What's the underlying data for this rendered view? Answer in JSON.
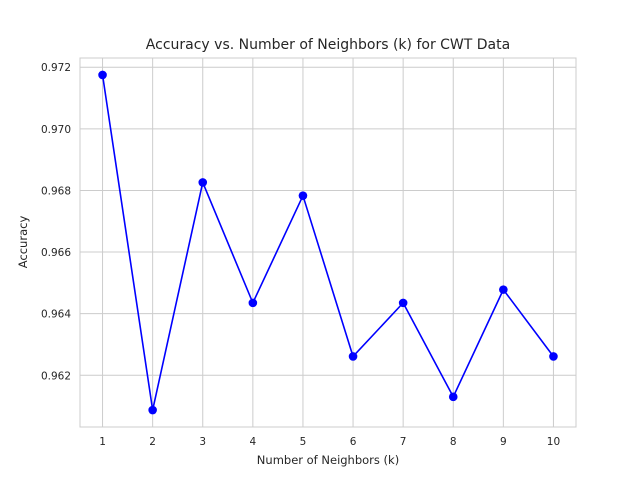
{
  "chart_data": {
    "type": "line",
    "title": "Accuracy vs. Number of Neighbors (k) for CWT Data",
    "xlabel": "Number of Neighbors (k)",
    "ylabel": "Accuracy",
    "x": [
      1,
      2,
      3,
      4,
      5,
      6,
      7,
      8,
      9,
      10
    ],
    "series": [
      {
        "values": [
          0.97175,
          0.96087,
          0.96826,
          0.96435,
          0.96783,
          0.96261,
          0.96435,
          0.9613,
          0.96478,
          0.96261
        ],
        "color": "#0000ff",
        "marker": "circle"
      }
    ],
    "xticks": [
      "1",
      "2",
      "3",
      "4",
      "5",
      "6",
      "7",
      "8",
      "9",
      "10"
    ],
    "yticks": [
      "0.962",
      "0.964",
      "0.966",
      "0.968",
      "0.970",
      "0.972"
    ],
    "xlim": [
      0.55,
      10.45
    ],
    "ylim": [
      0.96032,
      0.9723
    ],
    "grid": true,
    "legend": false
  }
}
